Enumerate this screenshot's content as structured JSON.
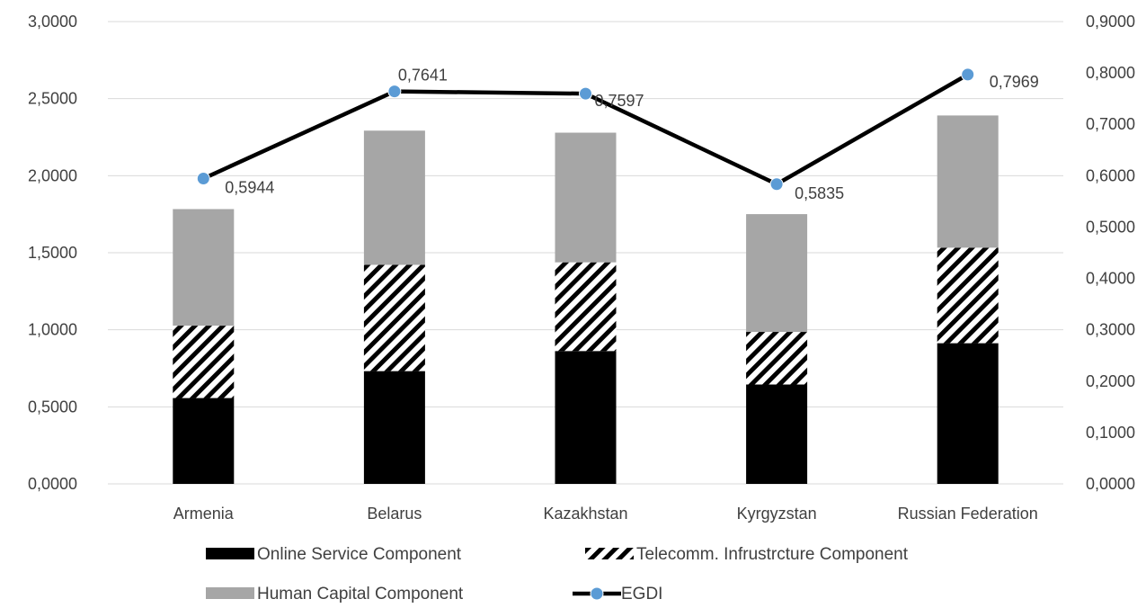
{
  "chart_data": {
    "type": "bar",
    "stacked": true,
    "categories": [
      "Armenia",
      "Belarus",
      "Kazakhstan",
      "Kyrgyzstan",
      "Russian Federation"
    ],
    "series": [
      {
        "name": "Online Service Component",
        "axis": "left",
        "style": "solid",
        "color": "#000000",
        "values": [
          0.5571,
          0.7319,
          0.8623,
          0.6449,
          0.913
        ]
      },
      {
        "name": "Telecomm. Infrustrcture Component",
        "axis": "left",
        "style": "hatched",
        "color": "#000000",
        "values": [
          0.4696,
          0.6895,
          0.5754,
          0.3412,
          0.6198
        ]
      },
      {
        "name": "Human Capital Component",
        "axis": "left",
        "style": "solid",
        "color": "#a6a6a6",
        "values": [
          0.7565,
          0.8709,
          0.8414,
          0.7644,
          0.8579
        ]
      },
      {
        "name": "EGDI",
        "type": "line",
        "axis": "right",
        "color": "#000000",
        "marker_color": "#5b9bd5",
        "values": [
          0.5944,
          0.7641,
          0.7597,
          0.5835,
          0.7969
        ],
        "data_labels": [
          "0,5944",
          "0,7641",
          "0,7597",
          "0,5835",
          "0,7969"
        ]
      }
    ],
    "y_left": {
      "range": [
        0,
        3
      ],
      "ticks": [
        "0,0000",
        "0,5000",
        "1,0000",
        "1,5000",
        "2,0000",
        "2,5000",
        "3,0000"
      ]
    },
    "y_right": {
      "range": [
        0,
        0.9
      ],
      "ticks": [
        "0,0000",
        "0,1000",
        "0,2000",
        "0,3000",
        "0,4000",
        "0,5000",
        "0,6000",
        "0,7000",
        "0,8000",
        "0,9000"
      ]
    },
    "grid": true,
    "legend_position": "bottom",
    "title": "",
    "xlabel": "",
    "ylabel": ""
  }
}
